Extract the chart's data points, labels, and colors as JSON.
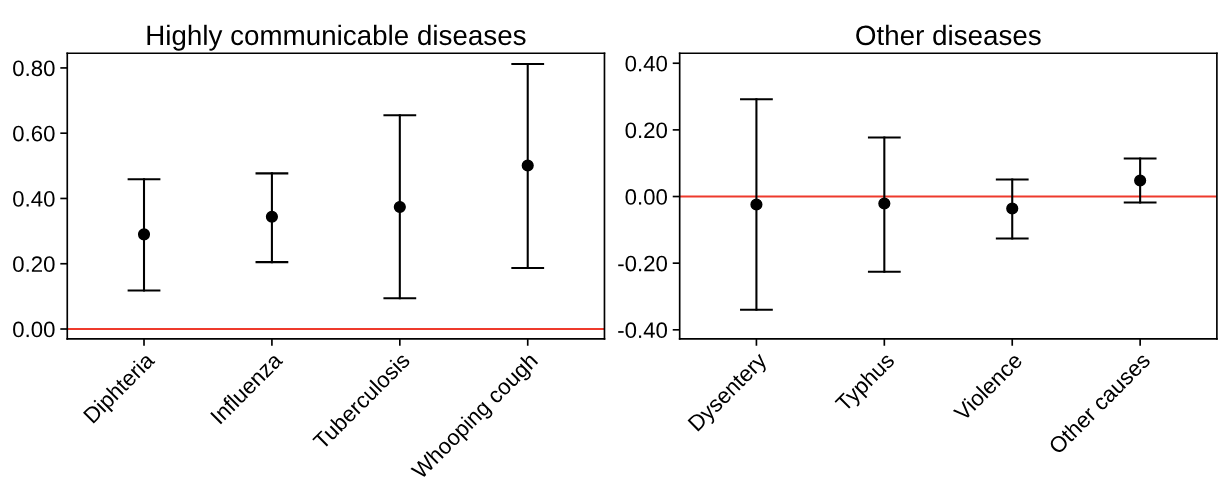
{
  "chart_data": [
    {
      "type": "scatter",
      "title": "Highly communicable diseases",
      "categories": [
        "Diphteria",
        "Influenza",
        "Tuberculosis",
        "Whooping cough"
      ],
      "series": [
        {
          "color": "#000000",
          "values": [
            0.29,
            0.344,
            0.374,
            0.501
          ],
          "errors": [
            [
              0.118,
              0.459
            ],
            [
              0.205,
              0.477
            ],
            [
              0.094,
              0.655
            ],
            [
              0.187,
              0.812
            ]
          ]
        }
      ],
      "ylim": [
        -0.03,
        0.845
      ],
      "yticks": [
        {
          "value": 0,
          "label": "0.00"
        },
        {
          "value": 0.2,
          "label": "0.20"
        },
        {
          "value": 0.4,
          "label": "0.40"
        },
        {
          "value": 0.6,
          "label": "0.60"
        },
        {
          "value": 0.8,
          "label": "0.80"
        }
      ],
      "ref_lines": [
        {
          "axis": "y",
          "value": 0,
          "color": "#ee3a2c"
        }
      ],
      "marker": "circle",
      "grid": false
    },
    {
      "type": "scatter",
      "title": "Other diseases",
      "categories": [
        "Dysentery",
        "Typhus",
        "Violence",
        "Other causes"
      ],
      "series": [
        {
          "color": "#000000",
          "values": [
            -0.024,
            -0.021,
            -0.036,
            0.048
          ],
          "errors": [
            [
              -0.34,
              0.292
            ],
            [
              -0.226,
              0.177
            ],
            [
              -0.126,
              0.051
            ],
            [
              -0.018,
              0.114
            ]
          ]
        }
      ],
      "ylim": [
        -0.427,
        0.43
      ],
      "yticks": [
        {
          "value": -0.4,
          "label": "-0.40"
        },
        {
          "value": -0.2,
          "label": "-0.20"
        },
        {
          "value": 0,
          "label": "0.00"
        },
        {
          "value": 0.2,
          "label": "0.20"
        },
        {
          "value": 0.4,
          "label": "0.40"
        }
      ],
      "ref_lines": [
        {
          "axis": "y",
          "value": 0,
          "color": "#ee3a2c"
        }
      ],
      "marker": "circle",
      "grid": false
    }
  ]
}
